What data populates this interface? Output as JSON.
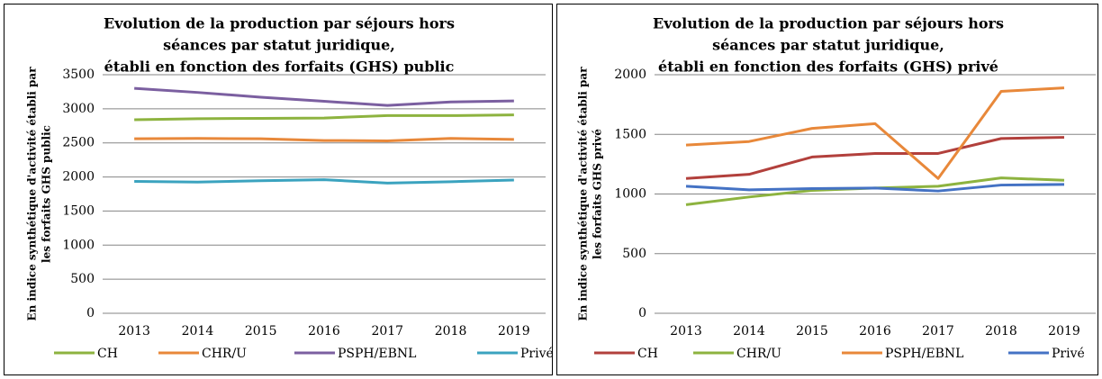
{
  "chart_data": [
    {
      "type": "line",
      "title": [
        "Evolution de la production par séjours hors",
        "séances par statut juridique,",
        "établi en fonction des forfaits (GHS) public"
      ],
      "y_label": [
        "En indice synthétique d'activité établi par",
        "les forfaits GHS public"
      ],
      "categories": [
        "2013",
        "2014",
        "2015",
        "2016",
        "2017",
        "2018",
        "2019"
      ],
      "ylim": [
        0,
        3500
      ],
      "yticks": [
        0,
        500,
        1000,
        1500,
        2000,
        2500,
        3000,
        3500
      ],
      "grid": true,
      "legend": "bottom",
      "series": [
        {
          "name": "CH",
          "color": "#8db33f",
          "values": [
            2840,
            2855,
            2860,
            2865,
            2900,
            2900,
            2910
          ]
        },
        {
          "name": "CHR/U",
          "color": "#e8883a",
          "values": [
            2560,
            2565,
            2560,
            2535,
            2530,
            2565,
            2550
          ]
        },
        {
          "name": "PSPH/EBNL",
          "color": "#7b5fa0",
          "values": [
            3300,
            3240,
            3170,
            3110,
            3050,
            3100,
            3115
          ]
        },
        {
          "name": "Privé",
          "color": "#3ba3bf",
          "values": [
            1935,
            1925,
            1945,
            1960,
            1910,
            1930,
            1955
          ]
        }
      ]
    },
    {
      "type": "line",
      "title": [
        "Evolution de la production par séjours hors",
        "séances  par statut juridique,",
        "établi en fonction des forfaits (GHS) privé"
      ],
      "y_label": [
        "En indice synthétique d'activité établi par",
        "les forfaits GHS privé"
      ],
      "categories": [
        "2013",
        "2014",
        "2015",
        "2016",
        "2017",
        "2018",
        "2019"
      ],
      "ylim": [
        0,
        2000
      ],
      "yticks": [
        0,
        500,
        1000,
        1500,
        2000
      ],
      "grid": true,
      "legend": "bottom",
      "series": [
        {
          "name": "CH",
          "color": "#b2403c",
          "values": [
            1130,
            1165,
            1310,
            1340,
            1340,
            1465,
            1475
          ]
        },
        {
          "name": "CHR/U",
          "color": "#8db33f",
          "values": [
            910,
            975,
            1030,
            1050,
            1065,
            1135,
            1115
          ]
        },
        {
          "name": "PSPH/EBNL",
          "color": "#e8883a",
          "values": [
            1410,
            1440,
            1550,
            1590,
            1130,
            1860,
            1890
          ]
        },
        {
          "name": "Privé",
          "color": "#4472c4",
          "values": [
            1065,
            1035,
            1045,
            1050,
            1025,
            1075,
            1080
          ]
        }
      ]
    }
  ]
}
